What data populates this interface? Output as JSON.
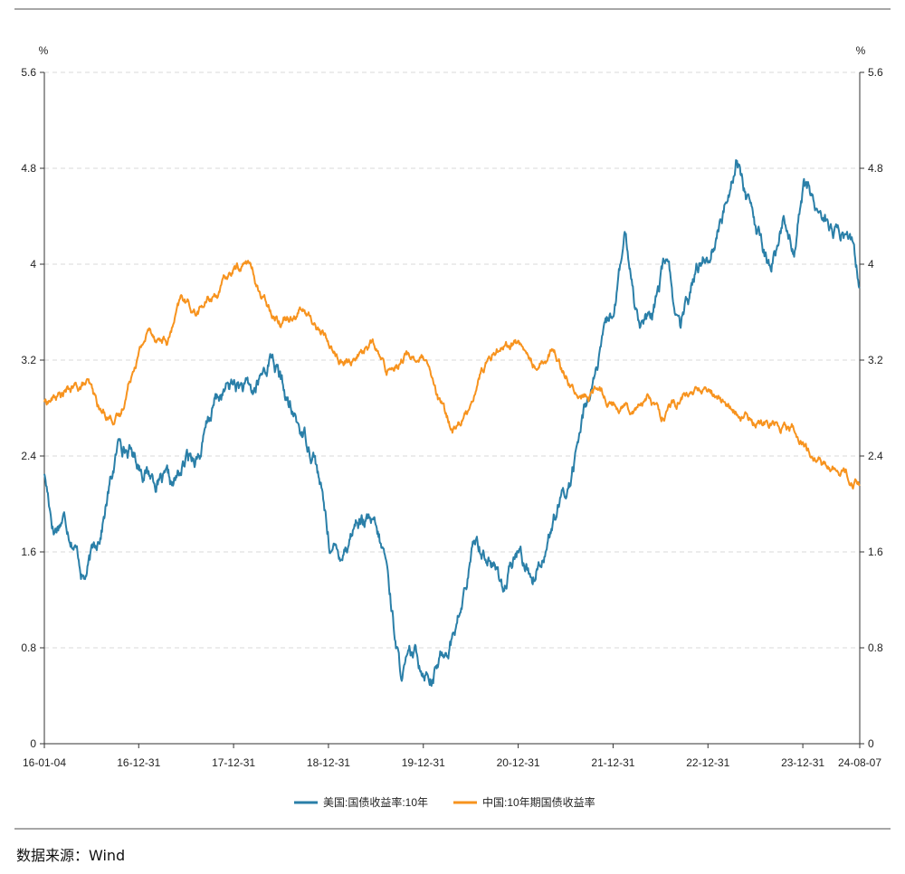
{
  "chart_data": {
    "type": "line",
    "left_unit": "%",
    "right_unit": "%",
    "y_ticks": [
      "0",
      "0.8",
      "1.6",
      "2.4",
      "3.2",
      "4",
      "4.8",
      "5.6"
    ],
    "ylim": [
      0,
      5.6
    ],
    "x_ticks": [
      "16-01-04",
      "16-12-31",
      "17-12-31",
      "18-12-31",
      "19-12-31",
      "20-12-31",
      "21-12-31",
      "22-12-31",
      "23-12-31",
      "24-08-07"
    ],
    "x_tick_positions": [
      0,
      0.9945,
      1.9945,
      2.9945,
      3.9945,
      4.9945,
      5.9945,
      6.9945,
      7.9945,
      8.5945
    ],
    "xlim": [
      0,
      8.5945
    ],
    "grid": true,
    "legend_position": "bottom-center",
    "series": [
      {
        "name": "美国:国债收益率:10年",
        "color": "#2a7fa8",
        "x": [
          0,
          0.1,
          0.2,
          0.3,
          0.42,
          0.5,
          0.6,
          0.8,
          0.9,
          1.0,
          1.2,
          1.35,
          1.5,
          1.65,
          1.8,
          2.0,
          2.2,
          2.4,
          2.6,
          2.75,
          2.85,
          3.0,
          3.1,
          3.3,
          3.45,
          3.6,
          3.75,
          3.9,
          4.1,
          4.22,
          4.3,
          4.4,
          4.55,
          4.7,
          4.85,
          5.0,
          5.15,
          5.3,
          5.45,
          5.55,
          5.7,
          5.85,
          6.0,
          6.12,
          6.25,
          6.4,
          6.55,
          6.7,
          6.82,
          6.95,
          7.0,
          7.15,
          7.3,
          7.5,
          7.65,
          7.8,
          7.9,
          8.0,
          8.2,
          8.35,
          8.5,
          8.59
        ],
        "values": [
          2.25,
          1.8,
          1.92,
          1.75,
          1.4,
          1.55,
          1.82,
          2.55,
          2.45,
          2.35,
          2.2,
          2.1,
          2.35,
          2.45,
          2.85,
          3.0,
          2.9,
          3.25,
          2.75,
          2.55,
          2.45,
          1.7,
          1.55,
          1.9,
          1.8,
          1.5,
          0.6,
          0.7,
          0.6,
          0.78,
          0.9,
          1.15,
          1.7,
          1.55,
          1.3,
          1.6,
          1.4,
          1.72,
          2.0,
          2.2,
          2.8,
          3.2,
          3.6,
          4.2,
          3.6,
          3.5,
          4.05,
          3.4,
          3.8,
          4.1,
          4.1,
          4.4,
          4.95,
          4.25,
          3.95,
          4.35,
          4.15,
          4.65,
          4.4,
          4.25,
          4.2,
          3.8
        ]
      },
      {
        "name": "中国:10年期国债收益率",
        "color": "#f7931e",
        "x": [
          0,
          0.15,
          0.3,
          0.45,
          0.6,
          0.8,
          0.95,
          1.1,
          1.3,
          1.45,
          1.6,
          1.8,
          2.0,
          2.15,
          2.3,
          2.5,
          2.7,
          2.85,
          3.0,
          3.15,
          3.3,
          3.45,
          3.6,
          3.8,
          4.0,
          4.15,
          4.3,
          4.45,
          4.6,
          4.8,
          5.0,
          5.15,
          5.35,
          5.5,
          5.65,
          5.85,
          6.0,
          6.2,
          6.35,
          6.5,
          6.7,
          6.9,
          7.1,
          7.3,
          7.5,
          7.7,
          7.9,
          8.05,
          8.2,
          8.4,
          8.59
        ],
        "values": [
          2.85,
          2.9,
          2.95,
          3.0,
          2.75,
          2.72,
          3.2,
          3.45,
          3.35,
          3.7,
          3.6,
          3.75,
          3.95,
          4.02,
          3.7,
          3.55,
          3.65,
          3.5,
          3.35,
          3.15,
          3.25,
          3.35,
          3.1,
          3.25,
          3.2,
          2.85,
          2.62,
          2.75,
          3.1,
          3.35,
          3.35,
          3.15,
          3.3,
          3.1,
          2.85,
          2.95,
          2.85,
          2.82,
          2.9,
          2.75,
          2.85,
          2.95,
          2.9,
          2.75,
          2.65,
          2.7,
          2.65,
          2.45,
          2.32,
          2.28,
          2.15
        ]
      }
    ]
  },
  "footer": {
    "source_label": "数据来源：Wind"
  }
}
